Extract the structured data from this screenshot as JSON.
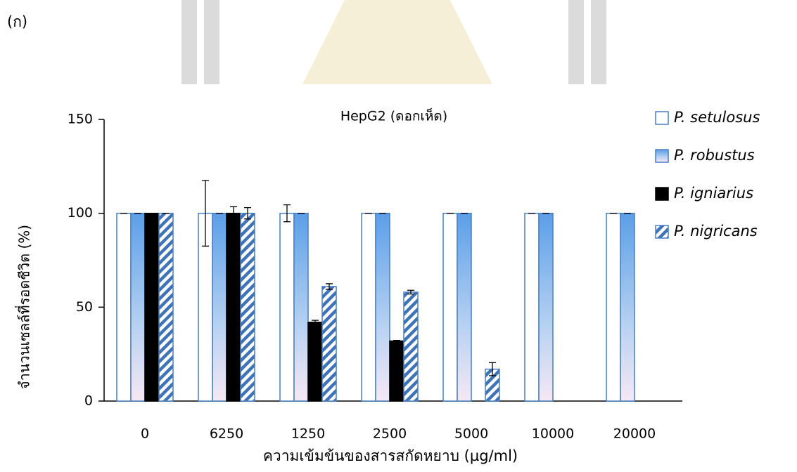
{
  "panel_label": "(ก)",
  "chart_data": {
    "type": "bar",
    "title": "HepG2 (ดอกเห็ด)",
    "x_label": "ความเข้มข้นของสารสกัดหยาบ (µg/ml)",
    "y_label": "จำนวนเซลล์ที่รอดชีวิต (%)",
    "categories": [
      "0",
      "6250",
      "1250",
      "2500",
      "5000",
      "10000",
      "20000"
    ],
    "ylim": [
      0,
      150
    ],
    "yticks": [
      0,
      50,
      100,
      150
    ],
    "legend": "right",
    "series": [
      {
        "name": "P. setulosus",
        "color": "#4a7fc1",
        "style": "outline",
        "values": [
          100,
          100,
          100,
          100,
          100,
          100,
          100
        ],
        "errors": [
          0,
          17.5,
          4.5,
          0,
          0,
          0,
          0
        ]
      },
      {
        "name": "P. robustus",
        "color": "#5b9ee8",
        "style": "gradient",
        "values": [
          100,
          100,
          100,
          100,
          100,
          100,
          100
        ],
        "errors": [
          0,
          0,
          0,
          0,
          0,
          0,
          0
        ]
      },
      {
        "name": "P. igniarius",
        "color": "#000000",
        "style": "solid",
        "values": [
          100,
          100,
          42,
          32,
          0,
          0,
          0
        ],
        "errors": [
          0,
          3.5,
          1,
          0.3,
          null,
          null,
          null
        ]
      },
      {
        "name": "P. nigricans",
        "color": "#3f73b8",
        "style": "hatch",
        "values": [
          100,
          100,
          61,
          58,
          17,
          0,
          0
        ],
        "errors": [
          0,
          3,
          1.5,
          1,
          3.5,
          null,
          null
        ]
      }
    ]
  }
}
